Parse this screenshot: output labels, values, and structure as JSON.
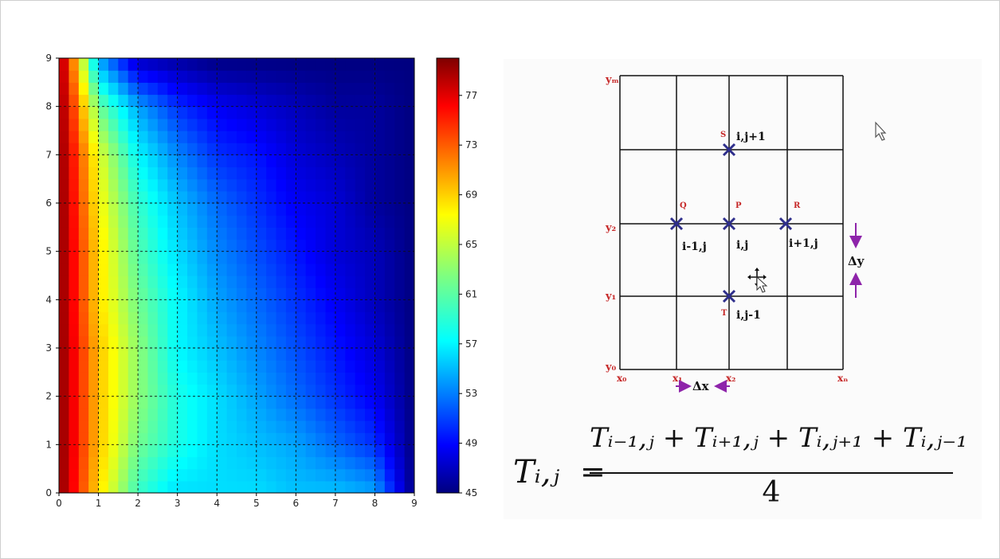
{
  "chart_data": {
    "type": "heatmap",
    "title": "",
    "xlabel": "",
    "ylabel": "",
    "xlim": [
      0,
      9
    ],
    "ylim": [
      0,
      9
    ],
    "x_ticks": [
      "0",
      "1",
      "2",
      "3",
      "4",
      "5",
      "6",
      "7",
      "8",
      "9"
    ],
    "y_ticks": [
      "0",
      "1",
      "2",
      "3",
      "4",
      "5",
      "6",
      "7",
      "8",
      "9"
    ],
    "grid": true,
    "colormap": "jet",
    "colorbar": {
      "range": [
        45,
        80
      ],
      "ticks": [
        "45",
        "49",
        "53",
        "57",
        "61",
        "65",
        "69",
        "73",
        "77"
      ]
    },
    "x": [
      0,
      1,
      2,
      3,
      4,
      5,
      6,
      7,
      8,
      9
    ],
    "y": [
      0,
      1,
      2,
      3,
      4,
      5,
      6,
      7,
      8,
      9
    ],
    "z": [
      [
        80,
        68,
        60,
        57,
        57,
        57,
        56,
        56,
        55,
        45
      ],
      [
        80,
        69,
        62,
        59,
        57,
        56,
        55,
        53,
        51,
        45
      ],
      [
        80,
        69,
        63,
        59,
        57,
        55,
        53,
        51,
        49,
        45
      ],
      [
        80,
        69,
        63,
        58,
        56,
        54,
        52,
        50,
        48,
        45
      ],
      [
        80,
        68,
        62,
        58,
        55,
        53,
        51,
        49,
        47,
        45
      ],
      [
        80,
        68,
        61,
        57,
        54,
        52,
        50,
        48,
        47,
        45
      ],
      [
        80,
        67,
        60,
        56,
        53,
        51,
        49,
        48,
        46,
        45
      ],
      [
        80,
        66,
        58,
        54,
        51,
        50,
        48,
        47,
        46,
        45
      ],
      [
        80,
        62,
        55,
        51,
        49,
        48,
        47,
        46,
        46,
        45
      ],
      [
        80,
        55,
        47,
        46,
        45,
        45,
        45,
        45,
        45,
        45
      ]
    ]
  },
  "diagram": {
    "y_labels": [
      "y₀",
      "y₁",
      "y₂",
      "yₘ"
    ],
    "x_labels": [
      "x₀",
      "x₁",
      "x₂",
      "xₙ"
    ],
    "nodes": [
      {
        "letter": "S",
        "label": "i,j+1"
      },
      {
        "letter": "Q",
        "label": "i-1,j"
      },
      {
        "letter": "P",
        "label": "i,j"
      },
      {
        "letter": "R",
        "label": "i+1,j"
      },
      {
        "letter": "T",
        "label": "i,j-1"
      }
    ],
    "dx_label": "Δx",
    "dy_label": "Δy"
  },
  "formula": {
    "lhs": "Tᵢ,ⱼ",
    "equals": "=",
    "numerator": "Tᵢ₋₁,ⱼ + Tᵢ₊₁,ⱼ + Tᵢ,ⱼ₊₁ + Tᵢ,ⱼ₋₁",
    "denominator": "4"
  },
  "colors": {
    "node_marker": "#2e2e8c",
    "diagram_label": "#c62828",
    "arrow": "#8e24aa",
    "grid_line": "#111111"
  }
}
